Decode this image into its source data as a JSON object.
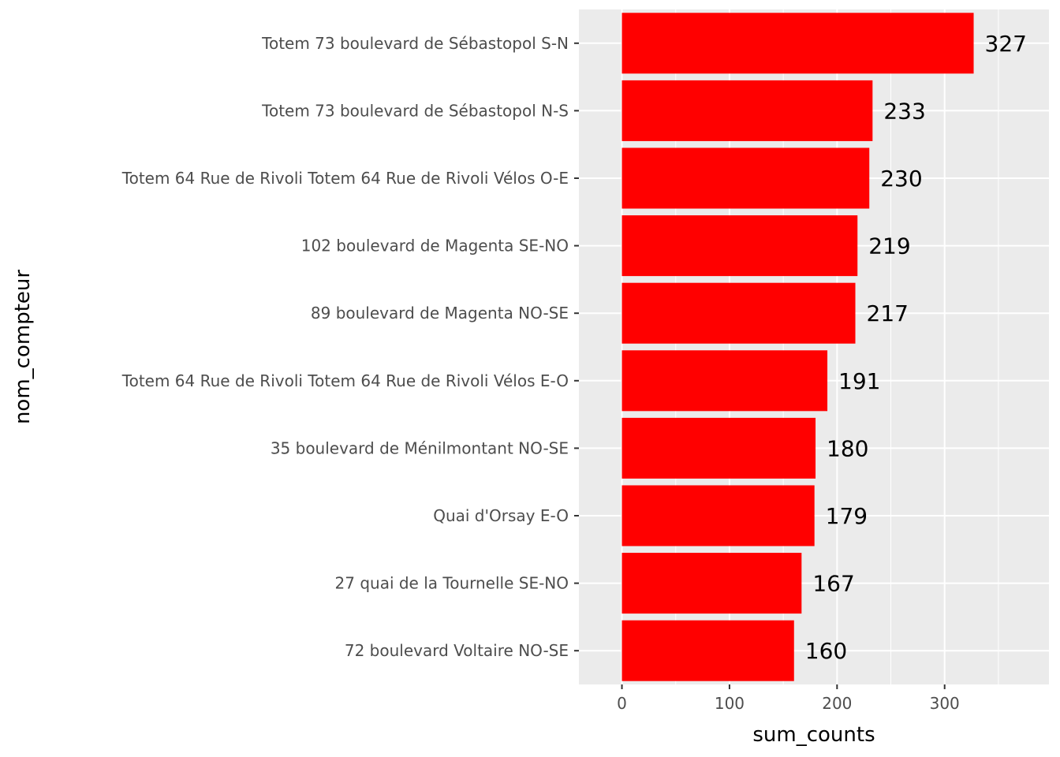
{
  "chart_data": {
    "type": "bar",
    "orientation": "horizontal",
    "categories": [
      "Totem 73 boulevard de Sébastopol S-N",
      "Totem 73 boulevard de Sébastopol N-S",
      "Totem 64 Rue de Rivoli Totem 64 Rue de Rivoli Vélos O-E",
      "102 boulevard de Magenta SE-NO",
      "89 boulevard de Magenta NO-SE",
      "Totem 64 Rue de Rivoli Totem 64 Rue de Rivoli Vélos E-O",
      "35 boulevard de Ménilmontant NO-SE",
      "Quai d'Orsay E-O",
      "27 quai de la Tournelle SE-NO",
      "72 boulevard Voltaire NO-SE"
    ],
    "values": [
      327,
      233,
      230,
      219,
      217,
      191,
      180,
      179,
      167,
      160
    ],
    "data_labels": [
      "327",
      "233",
      "230",
      "219",
      "217",
      "191",
      "180",
      "179",
      "167",
      "160"
    ],
    "xlabel": "sum_counts",
    "ylabel": "nom_compteur",
    "xlim": [
      -40,
      397
    ],
    "xticks": [
      0,
      100,
      200,
      300
    ],
    "xtick_labels": [
      "0",
      "100",
      "200",
      "300"
    ],
    "minor_xticks": [
      50,
      150,
      250,
      350
    ],
    "grid": true,
    "legend": "none",
    "bar_color": "#ff0000",
    "panel_color": "#ebebeb",
    "grid_color": "#ffffff"
  }
}
